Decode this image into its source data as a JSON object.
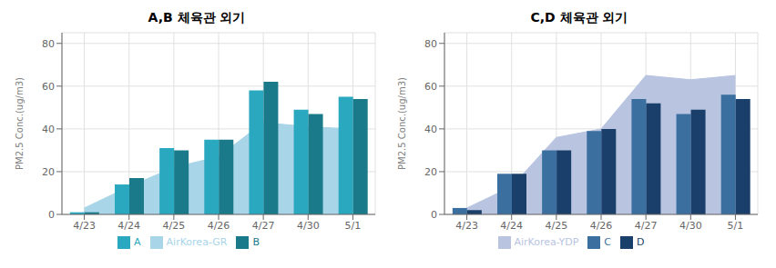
{
  "chart_data": [
    {
      "type": "bar",
      "title": "A,B 체육관 외기",
      "categories": [
        "4/23",
        "4/24",
        "4/25",
        "4/26",
        "4/27",
        "4/30",
        "5/1"
      ],
      "series": [
        {
          "name": "AirKorea-GR",
          "type": "area",
          "color": "#a8d5e8",
          "values": [
            3,
            13,
            22,
            27,
            43,
            41,
            40
          ]
        },
        {
          "name": "A",
          "type": "bar",
          "color": "#2aa8c0",
          "values": [
            1,
            14,
            31,
            35,
            58,
            49,
            55
          ]
        },
        {
          "name": "B",
          "type": "bar",
          "color": "#1a7a8a",
          "values": [
            1,
            17,
            30,
            35,
            62,
            47,
            54
          ]
        }
      ],
      "ylabel": "PM2.5 Conc.(ug/m3)",
      "ylim": [
        0,
        85
      ],
      "yticks": [
        0,
        20,
        40,
        60,
        80
      ],
      "grid": true,
      "legend": "bottom"
    },
    {
      "type": "bar",
      "title": "C,D 체육관 외기",
      "categories": [
        "4/23",
        "4/24",
        "4/25",
        "4/26",
        "4/27",
        "4/30",
        "5/1"
      ],
      "series": [
        {
          "name": "AirKorea-YDP",
          "type": "area",
          "color": "#b8c4e0",
          "values": [
            3,
            13,
            36,
            40,
            65,
            63,
            65
          ]
        },
        {
          "name": "C",
          "type": "bar",
          "color": "#3b6fa0",
          "values": [
            3,
            19,
            30,
            39,
            54,
            47,
            56
          ]
        },
        {
          "name": "D",
          "type": "bar",
          "color": "#1a3f6a",
          "values": [
            2,
            19,
            30,
            40,
            52,
            49,
            54
          ]
        }
      ],
      "ylabel": "PM2.5 Conc.(ug/m3)",
      "ylim": [
        0,
        85
      ],
      "yticks": [
        0,
        20,
        40,
        60,
        80
      ],
      "grid": true,
      "legend": "bottom"
    }
  ]
}
